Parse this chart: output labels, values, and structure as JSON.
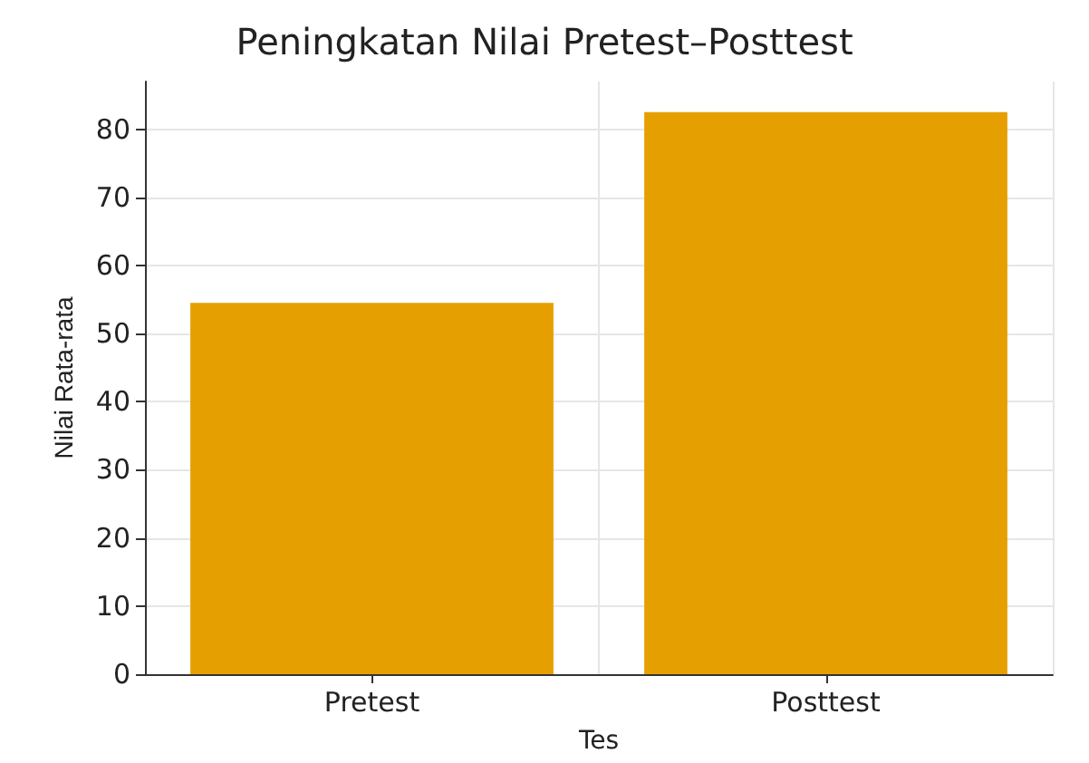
{
  "chart_data": {
    "type": "bar",
    "title": "Peningkatan Nilai Pretest–Posttest",
    "xlabel": "Tes",
    "ylabel": "Nilai Rata-rata",
    "categories": [
      "Pretest",
      "Posttest"
    ],
    "values": [
      54.5,
      82.5
    ],
    "color": "#e69f00",
    "ylim": [
      0,
      87
    ],
    "yticks": [
      0,
      10,
      20,
      30,
      40,
      50,
      60,
      70,
      80
    ],
    "grid": true
  }
}
